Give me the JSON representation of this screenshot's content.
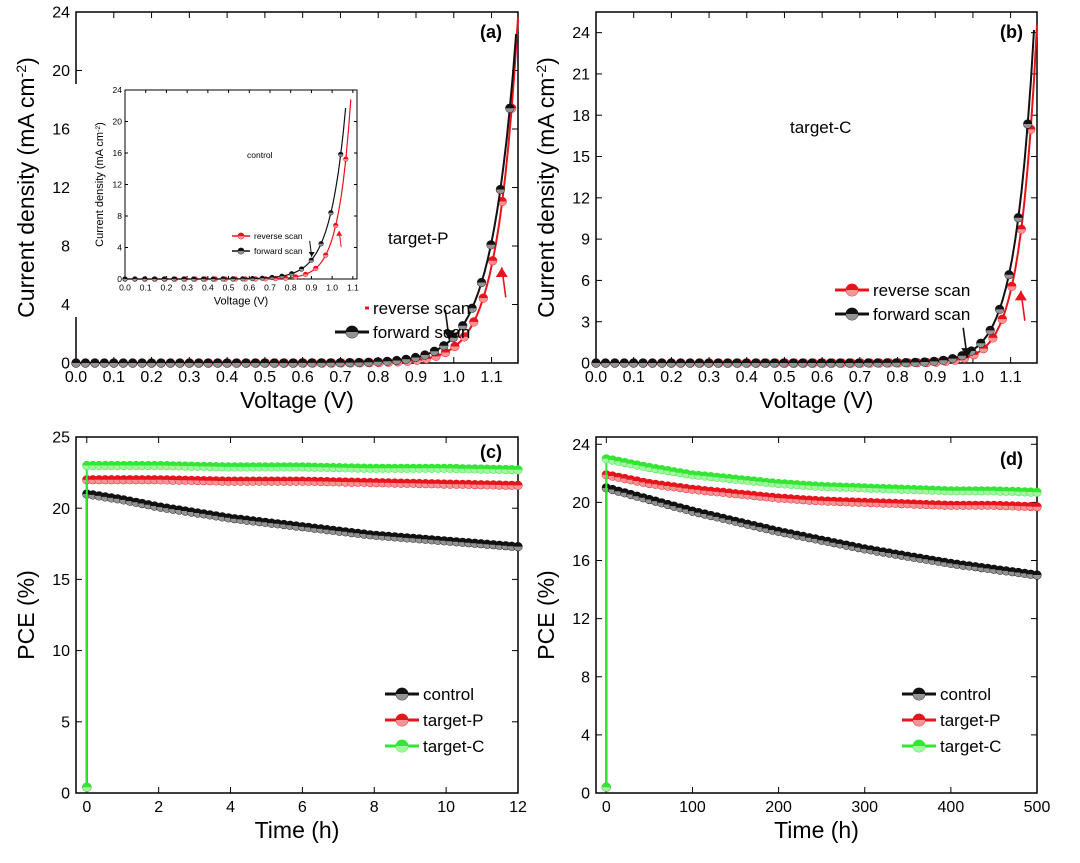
{
  "colors": {
    "red": "#e8141b",
    "black": "#111111",
    "green": "#33e633",
    "axis": "#000000"
  },
  "chart_data": [
    {
      "type": "line",
      "panel_label": "(a)",
      "xlabel": "Voltage (V)",
      "ylabel": "Current density (mA cm",
      "ylabel_sup": "-2",
      "ylabel_end": ")",
      "xlim": [
        0,
        1.17
      ],
      "ylim": [
        0,
        24
      ],
      "xticks": [
        "0.0",
        "0.1",
        "0.2",
        "0.3",
        "0.4",
        "0.5",
        "0.6",
        "0.7",
        "0.8",
        "0.9",
        "1.0",
        "1.1"
      ],
      "xtick_values": [
        0,
        0.1,
        0.2,
        0.3,
        0.4,
        0.5,
        0.6,
        0.7,
        0.8,
        0.9,
        1.0,
        1.1
      ],
      "yticks": [
        "0",
        "4",
        "8",
        "12",
        "16",
        "20",
        "24"
      ],
      "ytick_values": [
        0,
        4,
        8,
        12,
        16,
        20,
        24
      ],
      "annotation": "target-P",
      "legend": [
        {
          "name": "reverse scan",
          "color": "#e8141b"
        },
        {
          "name": "forward scan",
          "color": "#111111"
        }
      ],
      "series": [
        {
          "name": "reverse scan",
          "color": "#e8141b",
          "jsc": 23.6,
          "voc": 1.17,
          "knee": 0.055
        },
        {
          "name": "forward scan",
          "color": "#111111",
          "jsc": 22.5,
          "voc": 1.165,
          "knee": 0.065
        }
      ],
      "inset": {
        "xlabel": "Voltage (V)",
        "ylabel": "Current density (mA cm",
        "ylabel_sup": "-2",
        "ylabel_end": ")",
        "annotation": "control",
        "xlim": [
          0,
          1.12
        ],
        "ylim": [
          0,
          24
        ],
        "xticks": [
          "0.0",
          "0.1",
          "0.2",
          "0.3",
          "0.4",
          "0.5",
          "0.6",
          "0.7",
          "0.8",
          "0.9",
          "1.0",
          "1.1"
        ],
        "xtick_values": [
          0,
          0.1,
          0.2,
          0.3,
          0.4,
          0.5,
          0.6,
          0.7,
          0.8,
          0.9,
          1.0,
          1.1
        ],
        "yticks": [
          "0",
          "4",
          "8",
          "12",
          "16",
          "20",
          "24"
        ],
        "ytick_values": [
          0,
          4,
          8,
          12,
          16,
          20,
          24
        ],
        "legend": [
          {
            "name": "reverse scan",
            "color": "#e8141b"
          },
          {
            "name": "forward scan",
            "color": "#111111"
          }
        ],
        "series": [
          {
            "name": "reverse scan",
            "color": "#e8141b",
            "jsc": 22.8,
            "voc": 1.09,
            "knee": 0.06
          },
          {
            "name": "forward scan",
            "color": "#111111",
            "jsc": 21.7,
            "voc": 1.065,
            "knee": 0.075
          }
        ]
      }
    },
    {
      "type": "line",
      "panel_label": "(b)",
      "xlabel": "Voltage (V)",
      "ylabel": "Current density (mA cm",
      "ylabel_sup": "-2",
      "ylabel_end": ")",
      "xlim": [
        0,
        1.17
      ],
      "ylim": [
        0,
        25.5
      ],
      "xticks": [
        "0.0",
        "0.1",
        "0.2",
        "0.3",
        "0.4",
        "0.5",
        "0.6",
        "0.7",
        "0.8",
        "0.9",
        "1.0",
        "1.1"
      ],
      "xtick_values": [
        0,
        0.1,
        0.2,
        0.3,
        0.4,
        0.5,
        0.6,
        0.7,
        0.8,
        0.9,
        1.0,
        1.1
      ],
      "yticks": [
        "0",
        "3",
        "6",
        "9",
        "12",
        "15",
        "18",
        "21",
        "24"
      ],
      "ytick_values": [
        0,
        3,
        6,
        9,
        12,
        15,
        18,
        21,
        24
      ],
      "annotation": "target-C",
      "legend": [
        {
          "name": "reverse scan",
          "color": "#e8141b"
        },
        {
          "name": "forward scan",
          "color": "#111111"
        }
      ],
      "series": [
        {
          "name": "reverse scan",
          "color": "#e8141b",
          "jsc": 24.6,
          "voc": 1.17,
          "knee": 0.045
        },
        {
          "name": "forward scan",
          "color": "#111111",
          "jsc": 24.2,
          "voc": 1.162,
          "knee": 0.05
        }
      ]
    },
    {
      "type": "line",
      "panel_label": "(c)",
      "xlabel": "Time (h)",
      "ylabel": "PCE (%)",
      "xlim": [
        -0.3,
        12
      ],
      "ylim": [
        0,
        25
      ],
      "xticks": [
        "0",
        "2",
        "4",
        "6",
        "8",
        "10",
        "12"
      ],
      "xtick_values": [
        0,
        2,
        4,
        6,
        8,
        10,
        12
      ],
      "yticks": [
        "0",
        "5",
        "10",
        "15",
        "20",
        "25"
      ],
      "ytick_values": [
        0,
        5,
        10,
        15,
        20,
        25
      ],
      "legend": [
        {
          "name": "control",
          "color": "#111111"
        },
        {
          "name": "target-P",
          "color": "#e8141b"
        },
        {
          "name": "target-C",
          "color": "#33e633"
        }
      ],
      "series": [
        {
          "name": "control",
          "color": "#111111",
          "x": [
            0,
            1,
            2,
            3,
            4,
            5,
            6,
            7,
            8,
            9,
            10,
            11,
            12
          ],
          "y": [
            21.0,
            20.6,
            20.1,
            19.7,
            19.3,
            19.0,
            18.7,
            18.4,
            18.1,
            17.9,
            17.7,
            17.5,
            17.3
          ]
        },
        {
          "name": "target-P",
          "color": "#e8141b",
          "x": [
            0,
            2,
            4,
            6,
            8,
            10,
            12
          ],
          "y": [
            22.0,
            22.0,
            21.9,
            21.9,
            21.8,
            21.7,
            21.6
          ]
        },
        {
          "name": "target-C",
          "color": "#33e633",
          "x": [
            0,
            2,
            4,
            6,
            8,
            10,
            12
          ],
          "y": [
            23.0,
            23.0,
            22.9,
            22.9,
            22.8,
            22.8,
            22.7
          ]
        }
      ]
    },
    {
      "type": "line",
      "panel_label": "(d)",
      "xlabel": "Time (h)",
      "ylabel": "PCE (%)",
      "xlim": [
        -12,
        500
      ],
      "ylim": [
        0,
        24.5
      ],
      "xticks": [
        "0",
        "100",
        "200",
        "300",
        "400",
        "500"
      ],
      "xtick_values": [
        0,
        100,
        200,
        300,
        400,
        500
      ],
      "yticks": [
        "0",
        "4",
        "8",
        "12",
        "16",
        "20",
        "24"
      ],
      "ytick_values": [
        0,
        4,
        8,
        12,
        16,
        20,
        24
      ],
      "legend": [
        {
          "name": "control",
          "color": "#111111"
        },
        {
          "name": "target-P",
          "color": "#e8141b"
        },
        {
          "name": "target-C",
          "color": "#33e633"
        }
      ],
      "series": [
        {
          "name": "control",
          "color": "#111111",
          "x": [
            0,
            50,
            100,
            150,
            200,
            250,
            300,
            350,
            400,
            450,
            500
          ],
          "y": [
            21.0,
            20.2,
            19.4,
            18.7,
            18.0,
            17.4,
            16.8,
            16.3,
            15.8,
            15.4,
            15.0
          ]
        },
        {
          "name": "target-P",
          "color": "#e8141b",
          "x": [
            0,
            50,
            100,
            150,
            200,
            250,
            300,
            350,
            400,
            450,
            500
          ],
          "y": [
            21.9,
            21.3,
            20.9,
            20.6,
            20.3,
            20.1,
            20.0,
            19.9,
            19.8,
            19.8,
            19.7
          ]
        },
        {
          "name": "target-C",
          "color": "#33e633",
          "x": [
            0,
            50,
            100,
            150,
            200,
            250,
            300,
            350,
            400,
            450,
            500
          ],
          "y": [
            23.0,
            22.4,
            21.9,
            21.6,
            21.3,
            21.1,
            21.0,
            20.9,
            20.8,
            20.8,
            20.7
          ]
        }
      ]
    }
  ]
}
